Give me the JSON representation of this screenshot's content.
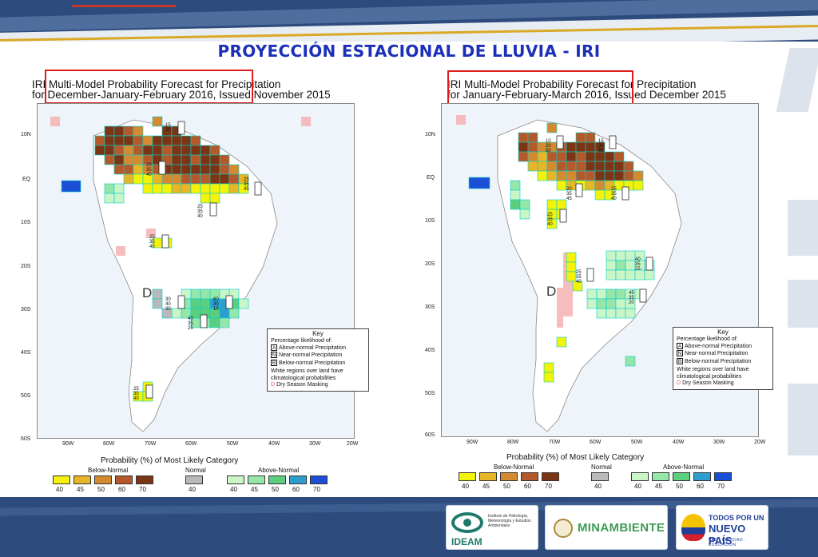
{
  "slide": {
    "title": "PROYECCIÓN ESTACIONAL DE LLUVIA - IRI"
  },
  "colors": {
    "title_blue": "#1b2fb8",
    "banner_navy": "#2d4b7c",
    "red_frame": "#e01b1b",
    "below_normal": [
      "#f2f20a",
      "#e6b627",
      "#d68a30",
      "#b45a2a",
      "#7b3514"
    ],
    "normal": "#b9b9b9",
    "above_normal": [
      "#c9f5c7",
      "#95e6a8",
      "#5bcf7e",
      "#2d9fcf",
      "#1a4fd6"
    ],
    "dry_season": "#f4b6b6"
  },
  "maps": [
    {
      "title_line1": "IRI Multi-Model Probability Forecast for Precipitation",
      "title_line2": "for December-January-February 2016, Issued November 2015",
      "lat_ticks": [
        "10N",
        "EQ",
        "10S",
        "20S",
        "30S",
        "40S",
        "50S",
        "60S"
      ],
      "lon_ticks": [
        "90W",
        "80W",
        "70W",
        "60W",
        "50W",
        "40W",
        "30W",
        "20W"
      ],
      "dry_letter": "D",
      "key": {
        "title": "Key",
        "subtitle": "Percentage likelihood of:",
        "rows": [
          {
            "letter": "A",
            "text": "Above-normal Precipitation"
          },
          {
            "letter": "N",
            "text": "Near-normal Precipitation"
          },
          {
            "letter": "B",
            "text": "Below-normal Precipitation"
          }
        ],
        "note": "White regions over land have climatological probabilities",
        "dry": {
          "letter": "D",
          "text": "Dry Season Masking"
        }
      },
      "colorbar": {
        "title": "Probability (%) of Most Likely Category",
        "below_label": "Below-Normal",
        "normal_label": "Normal",
        "above_label": "Above-Normal",
        "below_values": [
          "40",
          "45",
          "50",
          "60",
          "70"
        ],
        "normal_values": [
          "40"
        ],
        "above_values": [
          "40",
          "45",
          "50",
          "60",
          "70"
        ]
      }
    },
    {
      "title_line1": "IRI Multi-Model Probability Forecast for Precipitation",
      "title_line2": "for January-February-March 2016, Issued December 2015",
      "lat_ticks": [
        "10N",
        "EQ",
        "10S",
        "20S",
        "30S",
        "40S",
        "50S",
        "60S"
      ],
      "lon_ticks": [
        "90W",
        "80W",
        "70W",
        "60W",
        "50W",
        "40W",
        "30W",
        "20W"
      ],
      "dry_letter": "D",
      "key": {
        "title": "Key",
        "subtitle": "Percentage likelihood of:",
        "rows": [
          {
            "letter": "A",
            "text": "Above-normal Precipitation"
          },
          {
            "letter": "N",
            "text": "Near-normal Precipitation"
          },
          {
            "letter": "B",
            "text": "Below-normal Precipitation"
          }
        ],
        "note": "White regions over land have climatological probabilities",
        "dry": {
          "letter": "D",
          "text": "Dry Season Masking"
        }
      },
      "colorbar": {
        "title": "Probability (%) of Most Likely Category",
        "below_label": "Below-Normal",
        "normal_label": "Normal",
        "above_label": "Above-Normal",
        "below_values": [
          "40",
          "45",
          "50",
          "60",
          "70"
        ],
        "normal_values": [
          "40"
        ],
        "above_values": [
          "40",
          "45",
          "50",
          "60",
          "70"
        ]
      }
    }
  ],
  "logos": {
    "ideam_word": "IDEAM",
    "ideam_desc": "Instituto de Hidrología, Meteorología y Estudios Ambientales",
    "minamb_word": "MINAMBIENTE",
    "todos_line1": "TODOS POR UN",
    "todos_line2": "NUEVO PAÍS",
    "todos_line3": "PAZ · EQUIDAD · EDUCACIÓN"
  }
}
